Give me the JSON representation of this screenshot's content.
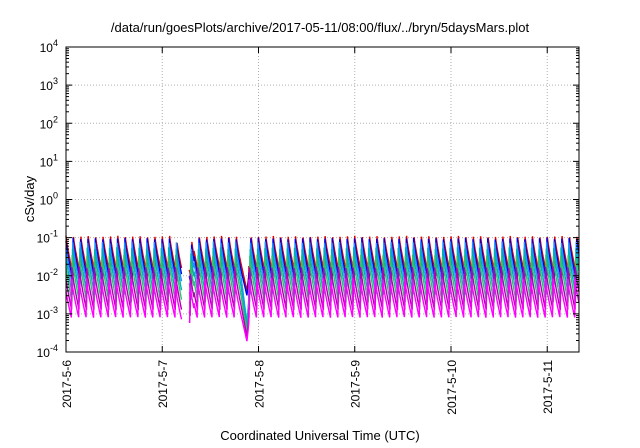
{
  "chart_data": {
    "type": "line",
    "title": "/data/run/goesPlots/archive/2017-05-11/08:00/flux/../bryn/5daysMars.plot",
    "xlabel": "Coordinated Universal Time (UTC)",
    "ylabel": "cSv/day",
    "yscale": "log",
    "ylim_exp": [
      -4,
      4
    ],
    "y_ticks": [
      {
        "base": "10",
        "exp": "-4"
      },
      {
        "base": "10",
        "exp": "-3"
      },
      {
        "base": "10",
        "exp": "-2"
      },
      {
        "base": "10",
        "exp": "-1"
      },
      {
        "base": "10",
        "exp": "0"
      },
      {
        "base": "10",
        "exp": "1"
      },
      {
        "base": "10",
        "exp": "2"
      },
      {
        "base": "10",
        "exp": "3"
      },
      {
        "base": "10",
        "exp": "4"
      }
    ],
    "x_day_range": [
      0,
      5.33
    ],
    "x_ticks": [
      "2017-5-6",
      "2017-5-7",
      "2017-5-8",
      "2017-5-9",
      "2017-5-10",
      "2017-5-11"
    ],
    "grid": true,
    "legend": "none",
    "series_colors": [
      "#e00000",
      "#0000e0",
      "#2090ff",
      "#00b0b0",
      "#30c070",
      "#b000b0",
      "#ff00ff"
    ],
    "gap_days": [
      1.2,
      1.28
    ],
    "event": {
      "start_day": 1.82,
      "end_day": 1.9
    },
    "series_top_log": [
      -0.95,
      -1.0,
      -1.1,
      -1.25,
      -1.45,
      -1.75,
      -2.05
    ],
    "series_bottom_log": [
      -2.0,
      -2.15,
      -2.3,
      -2.5,
      -2.7,
      -2.9,
      -3.1
    ]
  }
}
